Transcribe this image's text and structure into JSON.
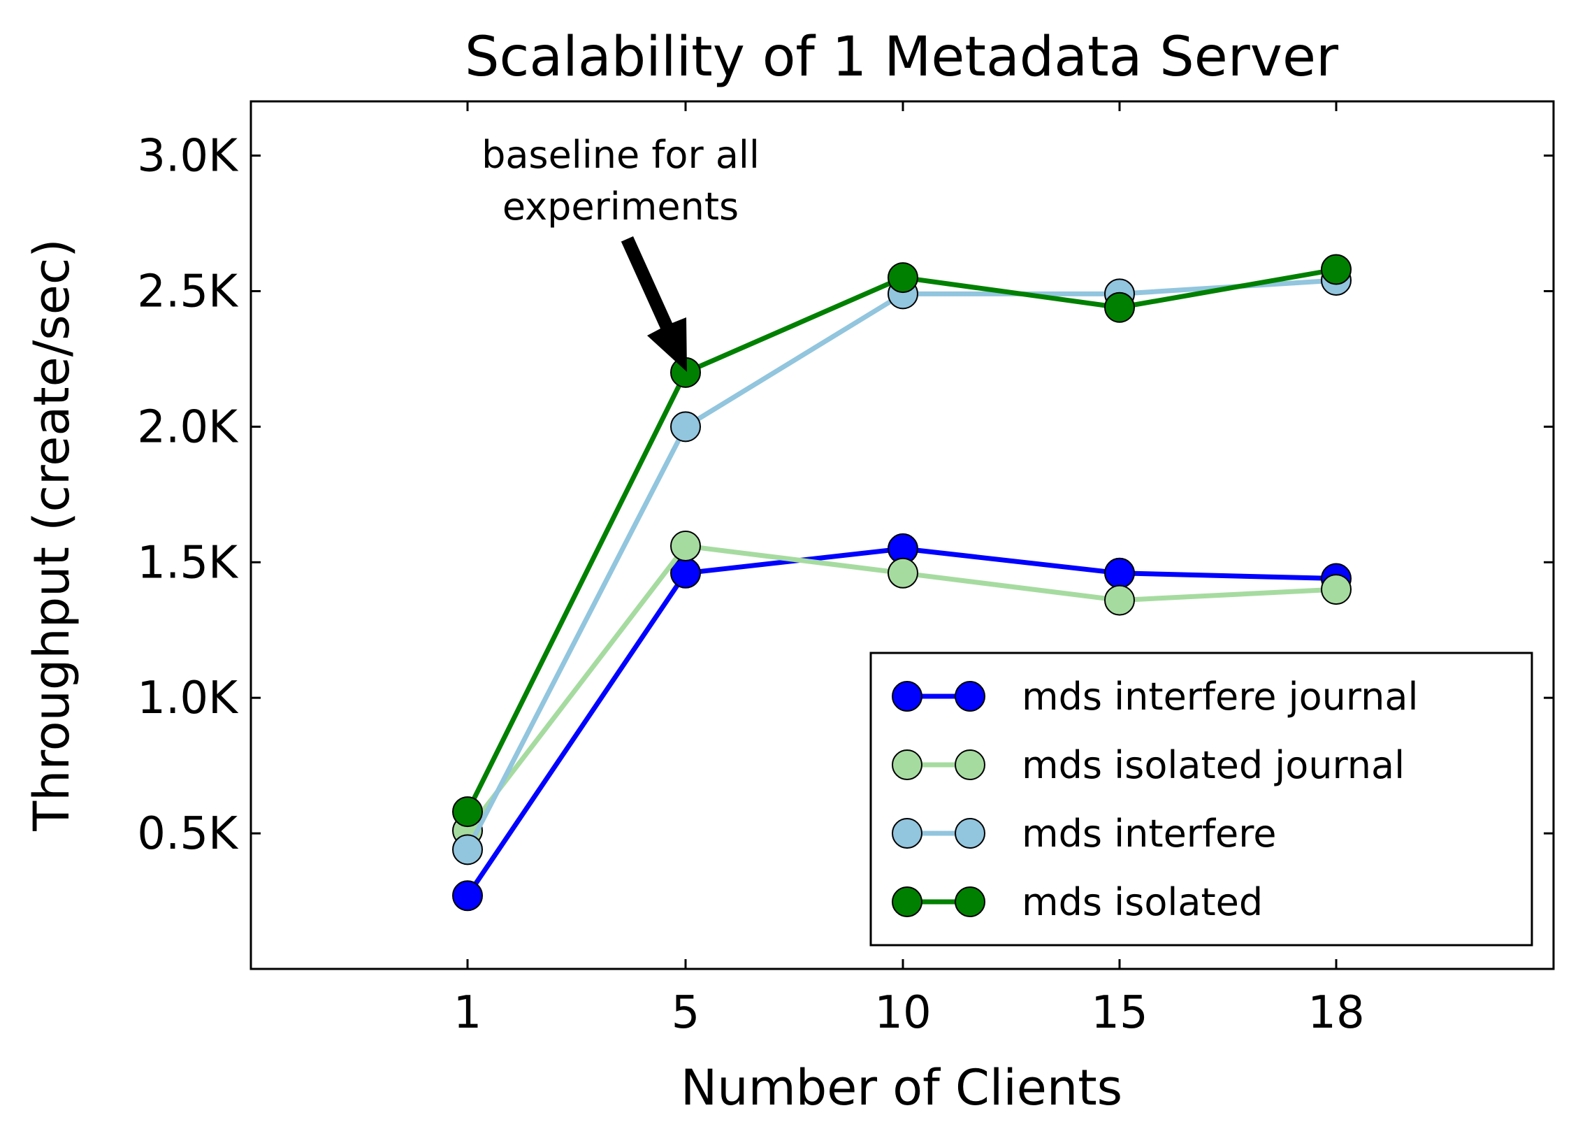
{
  "chart_data": {
    "type": "line",
    "title": "Scalability of 1 Metadata Server",
    "xlabel": "Number of Clients",
    "ylabel": "Throughput (create/sec)",
    "x": [
      1,
      5,
      10,
      15,
      18
    ],
    "x_tick_labels": [
      "1",
      "5",
      "10",
      "15",
      "18"
    ],
    "y_ticks": [
      500,
      1000,
      1500,
      2000,
      2500,
      3000
    ],
    "y_tick_labels": [
      "0.5K",
      "1.0K",
      "1.5K",
      "2.0K",
      "2.5K",
      "3.0K"
    ],
    "ylim": [
      0,
      3200
    ],
    "legend_position": "lower-right",
    "grid": false,
    "series": [
      {
        "name": "mds interfere journal",
        "color": "#0000ff",
        "values": [
          270,
          1460,
          1550,
          1460,
          1440
        ]
      },
      {
        "name": "mds isolated journal",
        "color": "#a6dba0",
        "values": [
          510,
          1560,
          1460,
          1360,
          1400
        ]
      },
      {
        "name": "mds interfere",
        "color": "#92c5de",
        "values": [
          440,
          2000,
          2490,
          2490,
          2540
        ]
      },
      {
        "name": "mds isolated",
        "color": "#008000",
        "values": [
          580,
          2200,
          2550,
          2440,
          2580
        ]
      }
    ],
    "annotation": {
      "text_line1": "baseline for all",
      "text_line2": "experiments",
      "x": 5,
      "y": 2200
    }
  }
}
